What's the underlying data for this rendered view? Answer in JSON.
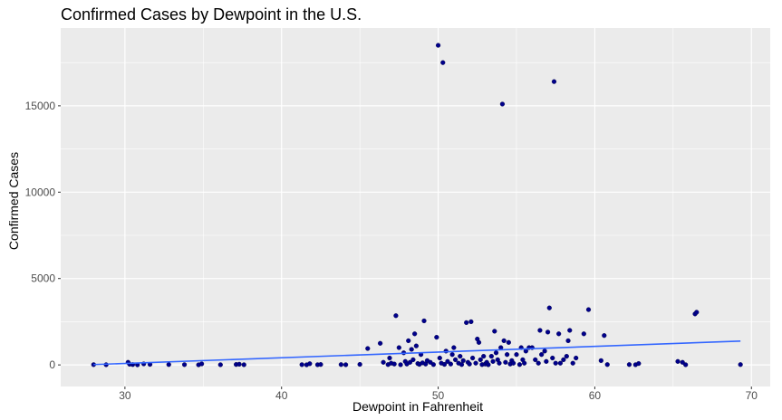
{
  "chart_data": {
    "type": "scatter",
    "title": "Confirmed Cases by Dewpoint in the U.S.",
    "xlabel": "Dewpoint in Fahrenheit",
    "ylabel": "Confirmed Cases",
    "xlim": [
      25.9,
      71.2
    ],
    "ylim": [
      -1250,
      19500
    ],
    "x_ticks": [
      30,
      40,
      50,
      60,
      70
    ],
    "y_ticks": [
      0,
      5000,
      10000,
      15000
    ],
    "grid": true,
    "colors": {
      "panel": "#ebebeb",
      "grid_major": "#ffffff",
      "point": "#00008b",
      "trend": "#3366ff"
    },
    "points": [
      [
        28,
        15
      ],
      [
        28.8,
        10
      ],
      [
        30.2,
        150
      ],
      [
        30.3,
        40
      ],
      [
        30.5,
        20
      ],
      [
        30.8,
        5
      ],
      [
        31.2,
        60
      ],
      [
        31.6,
        30
      ],
      [
        32.8,
        20
      ],
      [
        33.8,
        15
      ],
      [
        34.7,
        5
      ],
      [
        34.9,
        60
      ],
      [
        36.1,
        10
      ],
      [
        37.1,
        25
      ],
      [
        37.3,
        40
      ],
      [
        37.6,
        10
      ],
      [
        41.3,
        15
      ],
      [
        41.6,
        5
      ],
      [
        41.8,
        70
      ],
      [
        42.3,
        10
      ],
      [
        42.5,
        25
      ],
      [
        43.8,
        20
      ],
      [
        44.1,
        10
      ],
      [
        45,
        30
      ],
      [
        45.5,
        950
      ],
      [
        46.3,
        1250
      ],
      [
        46.5,
        150
      ],
      [
        46.8,
        20
      ],
      [
        46.9,
        400
      ],
      [
        47,
        100
      ],
      [
        47.2,
        50
      ],
      [
        47.3,
        2850
      ],
      [
        47.5,
        1000
      ],
      [
        47.6,
        10
      ],
      [
        47.8,
        700
      ],
      [
        47.9,
        200
      ],
      [
        48,
        50
      ],
      [
        48.1,
        1400
      ],
      [
        48.2,
        150
      ],
      [
        48.3,
        900
      ],
      [
        48.4,
        300
      ],
      [
        48.5,
        1800
      ],
      [
        48.6,
        1100
      ],
      [
        48.7,
        80
      ],
      [
        48.8,
        30
      ],
      [
        48.9,
        600
      ],
      [
        49,
        120
      ],
      [
        49.1,
        2550
      ],
      [
        49.2,
        50
      ],
      [
        49.3,
        250
      ],
      [
        49.5,
        150
      ],
      [
        49.7,
        20
      ],
      [
        49.9,
        1600
      ],
      [
        50,
        18500
      ],
      [
        50.1,
        400
      ],
      [
        50.2,
        100
      ],
      [
        50.3,
        17500
      ],
      [
        50.4,
        30
      ],
      [
        50.5,
        800
      ],
      [
        50.6,
        200
      ],
      [
        50.8,
        50
      ],
      [
        50.9,
        600
      ],
      [
        51,
        1000
      ],
      [
        51.1,
        300
      ],
      [
        51.3,
        100
      ],
      [
        51.4,
        500
      ],
      [
        51.5,
        20
      ],
      [
        51.6,
        250
      ],
      [
        51.8,
        2450
      ],
      [
        51.9,
        150
      ],
      [
        52,
        50
      ],
      [
        52.1,
        2500
      ],
      [
        52.2,
        400
      ],
      [
        52.4,
        100
      ],
      [
        52.5,
        1500
      ],
      [
        52.6,
        1300
      ],
      [
        52.7,
        300
      ],
      [
        52.8,
        20
      ],
      [
        52.9,
        500
      ],
      [
        53,
        50
      ],
      [
        53.1,
        150
      ],
      [
        53.2,
        10
      ],
      [
        53.4,
        500
      ],
      [
        53.5,
        200
      ],
      [
        53.6,
        1950
      ],
      [
        53.7,
        700
      ],
      [
        53.8,
        300
      ],
      [
        53.9,
        100
      ],
      [
        54,
        1000
      ],
      [
        54.1,
        15100
      ],
      [
        54.2,
        1400
      ],
      [
        54.3,
        150
      ],
      [
        54.4,
        600
      ],
      [
        54.5,
        1300
      ],
      [
        54.6,
        50
      ],
      [
        54.7,
        250
      ],
      [
        54.8,
        100
      ],
      [
        55,
        600
      ],
      [
        55.2,
        20
      ],
      [
        55.3,
        1000
      ],
      [
        55.4,
        300
      ],
      [
        55.5,
        100
      ],
      [
        55.6,
        800
      ],
      [
        55.8,
        1000
      ],
      [
        56,
        1000
      ],
      [
        56.2,
        300
      ],
      [
        56.4,
        100
      ],
      [
        56.5,
        2000
      ],
      [
        56.6,
        600
      ],
      [
        56.8,
        800
      ],
      [
        56.9,
        200
      ],
      [
        57,
        1900
      ],
      [
        57.1,
        3300
      ],
      [
        57.3,
        400
      ],
      [
        57.4,
        16400
      ],
      [
        57.5,
        100
      ],
      [
        57.7,
        1800
      ],
      [
        57.8,
        100
      ],
      [
        58,
        300
      ],
      [
        58.2,
        500
      ],
      [
        58.3,
        1400
      ],
      [
        58.4,
        2000
      ],
      [
        58.6,
        100
      ],
      [
        58.8,
        400
      ],
      [
        59.3,
        1800
      ],
      [
        59.6,
        3200
      ],
      [
        60.4,
        250
      ],
      [
        60.6,
        1700
      ],
      [
        60.8,
        20
      ],
      [
        62.2,
        20
      ],
      [
        62.6,
        10
      ],
      [
        62.8,
        80
      ],
      [
        65.3,
        200
      ],
      [
        65.6,
        150
      ],
      [
        65.8,
        10
      ],
      [
        66.4,
        2950
      ],
      [
        66.5,
        3050
      ],
      [
        69.3,
        20
      ]
    ],
    "trend_line": {
      "x": [
        28,
        69.3
      ],
      "y": [
        20,
        1380
      ]
    }
  }
}
